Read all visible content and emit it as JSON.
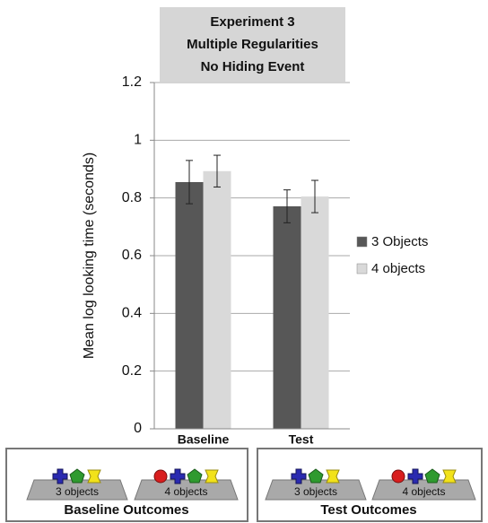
{
  "chart_data": {
    "type": "bar",
    "title": [
      "Experiment 3",
      "Multiple Regularities",
      "No Hiding Event"
    ],
    "y_label": "Mean log looking time (seconds)",
    "categories": [
      "Baseline",
      "Test"
    ],
    "series": [
      {
        "name": "3 Objects",
        "color": "#575757",
        "values": [
          0.855,
          0.771
        ],
        "errors": [
          0.075,
          0.057
        ]
      },
      {
        "name": "4 objects",
        "color": "#d9d9d9",
        "values": [
          0.893,
          0.805
        ],
        "errors": [
          0.055,
          0.056
        ]
      }
    ],
    "ylim": [
      0,
      1.2
    ],
    "yticks": [
      0,
      0.2,
      0.4,
      0.6,
      0.8,
      1,
      1.2
    ],
    "grid": true,
    "legend": "right"
  },
  "panels": [
    {
      "labels": [
        "3 objects",
        "4 objects"
      ],
      "title": "Baseline Outcomes"
    },
    {
      "labels": [
        "3 objects",
        "4 objects"
      ],
      "title": "Test Outcomes"
    }
  ]
}
